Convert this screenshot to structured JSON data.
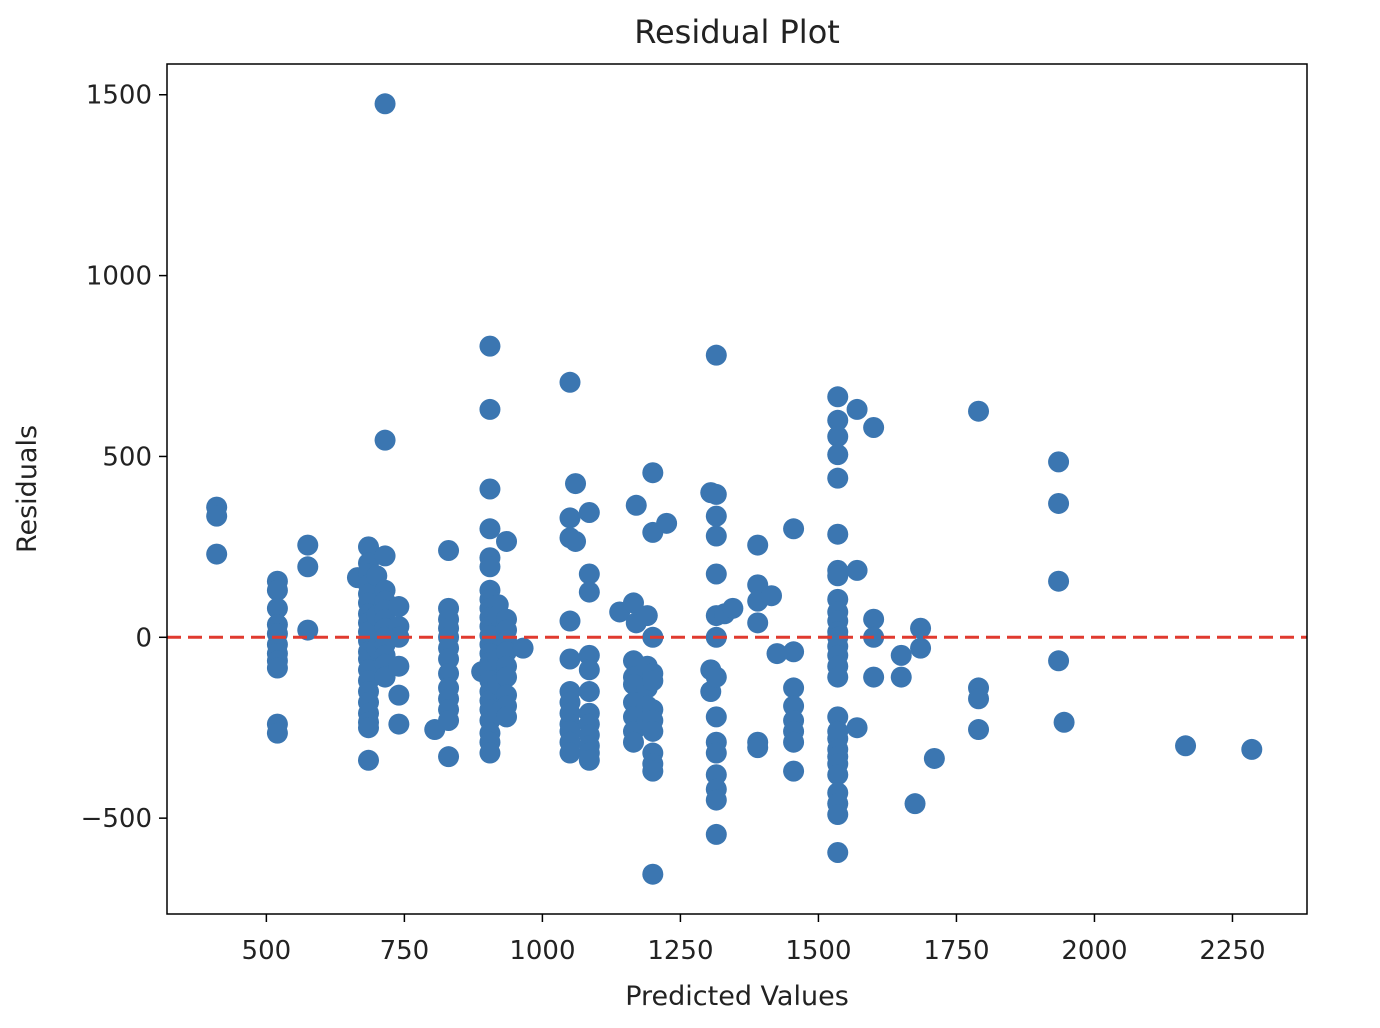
{
  "chart_data": {
    "type": "scatter",
    "title": "Residual Plot",
    "xlabel": "Predicted Values",
    "ylabel": "Residuals",
    "xlim": [
      320,
      2385
    ],
    "ylim": [
      -765,
      1585
    ],
    "xticks": [
      500,
      750,
      1000,
      1250,
      1500,
      1750,
      2000,
      2250
    ],
    "yticks": [
      -500,
      0,
      500,
      1000,
      1500
    ],
    "xtick_labels": [
      "500",
      "750",
      "1000",
      "1250",
      "1500",
      "1750",
      "2000",
      "2250"
    ],
    "ytick_labels": [
      "−500",
      "0",
      "500",
      "1000",
      "1500"
    ],
    "grid": false,
    "legend": "none",
    "point_color": "#3b76b1",
    "reference_line": {
      "y": 0,
      "style": "dashed",
      "color": "#e03a2f"
    },
    "points": [
      [
        410,
        360
      ],
      [
        410,
        335
      ],
      [
        410,
        230
      ],
      [
        520,
        155
      ],
      [
        520,
        130
      ],
      [
        520,
        80
      ],
      [
        520,
        35
      ],
      [
        520,
        10
      ],
      [
        520,
        -20
      ],
      [
        520,
        -45
      ],
      [
        520,
        -65
      ],
      [
        520,
        -85
      ],
      [
        520,
        -240
      ],
      [
        520,
        -265
      ],
      [
        575,
        255
      ],
      [
        575,
        195
      ],
      [
        575,
        20
      ],
      [
        665,
        165
      ],
      [
        685,
        250
      ],
      [
        685,
        205
      ],
      [
        685,
        175
      ],
      [
        685,
        145
      ],
      [
        685,
        120
      ],
      [
        685,
        95
      ],
      [
        685,
        65
      ],
      [
        685,
        40
      ],
      [
        685,
        15
      ],
      [
        685,
        -10
      ],
      [
        685,
        -40
      ],
      [
        685,
        -60
      ],
      [
        685,
        -90
      ],
      [
        685,
        -120
      ],
      [
        685,
        -150
      ],
      [
        685,
        -180
      ],
      [
        685,
        -210
      ],
      [
        685,
        -235
      ],
      [
        685,
        -250
      ],
      [
        685,
        -340
      ],
      [
        700,
        170
      ],
      [
        700,
        60
      ],
      [
        700,
        -30
      ],
      [
        715,
        1475
      ],
      [
        715,
        545
      ],
      [
        715,
        225
      ],
      [
        715,
        130
      ],
      [
        715,
        100
      ],
      [
        715,
        75
      ],
      [
        715,
        50
      ],
      [
        715,
        25
      ],
      [
        715,
        0
      ],
      [
        715,
        -20
      ],
      [
        715,
        -50
      ],
      [
        715,
        -75
      ],
      [
        715,
        -110
      ],
      [
        740,
        85
      ],
      [
        740,
        30
      ],
      [
        740,
        0
      ],
      [
        740,
        -80
      ],
      [
        740,
        -160
      ],
      [
        740,
        -240
      ],
      [
        805,
        -255
      ],
      [
        830,
        240
      ],
      [
        830,
        80
      ],
      [
        830,
        50
      ],
      [
        830,
        25
      ],
      [
        830,
        0
      ],
      [
        830,
        -30
      ],
      [
        830,
        -60
      ],
      [
        830,
        -100
      ],
      [
        830,
        -140
      ],
      [
        830,
        -170
      ],
      [
        830,
        -200
      ],
      [
        830,
        -230
      ],
      [
        830,
        -330
      ],
      [
        890,
        -95
      ],
      [
        905,
        805
      ],
      [
        905,
        630
      ],
      [
        905,
        410
      ],
      [
        905,
        300
      ],
      [
        905,
        220
      ],
      [
        905,
        195
      ],
      [
        905,
        130
      ],
      [
        905,
        105
      ],
      [
        905,
        80
      ],
      [
        905,
        55
      ],
      [
        905,
        30
      ],
      [
        905,
        5
      ],
      [
        905,
        -20
      ],
      [
        905,
        -45
      ],
      [
        905,
        -70
      ],
      [
        905,
        -95
      ],
      [
        905,
        -120
      ],
      [
        905,
        -150
      ],
      [
        905,
        -175
      ],
      [
        905,
        -200
      ],
      [
        905,
        -230
      ],
      [
        905,
        -265
      ],
      [
        905,
        -290
      ],
      [
        905,
        -320
      ],
      [
        920,
        90
      ],
      [
        920,
        60
      ],
      [
        920,
        -60
      ],
      [
        920,
        -130
      ],
      [
        920,
        -210
      ],
      [
        935,
        265
      ],
      [
        935,
        50
      ],
      [
        935,
        20
      ],
      [
        935,
        -10
      ],
      [
        935,
        -40
      ],
      [
        935,
        -80
      ],
      [
        935,
        -110
      ],
      [
        935,
        -160
      ],
      [
        935,
        -190
      ],
      [
        935,
        -220
      ],
      [
        965,
        -30
      ],
      [
        1050,
        705
      ],
      [
        1050,
        330
      ],
      [
        1050,
        275
      ],
      [
        1050,
        45
      ],
      [
        1050,
        -60
      ],
      [
        1050,
        -150
      ],
      [
        1050,
        -180
      ],
      [
        1050,
        -210
      ],
      [
        1050,
        -240
      ],
      [
        1050,
        -260
      ],
      [
        1050,
        -290
      ],
      [
        1050,
        -320
      ],
      [
        1060,
        425
      ],
      [
        1060,
        265
      ],
      [
        1085,
        345
      ],
      [
        1085,
        175
      ],
      [
        1085,
        125
      ],
      [
        1085,
        -50
      ],
      [
        1085,
        -90
      ],
      [
        1085,
        -150
      ],
      [
        1085,
        -210
      ],
      [
        1085,
        -240
      ],
      [
        1085,
        -270
      ],
      [
        1085,
        -300
      ],
      [
        1085,
        -320
      ],
      [
        1085,
        -340
      ],
      [
        1140,
        70
      ],
      [
        1165,
        95
      ],
      [
        1165,
        -65
      ],
      [
        1165,
        -110
      ],
      [
        1165,
        -130
      ],
      [
        1165,
        -180
      ],
      [
        1165,
        -220
      ],
      [
        1165,
        -260
      ],
      [
        1165,
        -290
      ],
      [
        1170,
        365
      ],
      [
        1170,
        40
      ],
      [
        1190,
        60
      ],
      [
        1190,
        -80
      ],
      [
        1190,
        -140
      ],
      [
        1190,
        -190
      ],
      [
        1190,
        -230
      ],
      [
        1200,
        455
      ],
      [
        1200,
        290
      ],
      [
        1200,
        0
      ],
      [
        1200,
        -100
      ],
      [
        1200,
        -120
      ],
      [
        1200,
        -200
      ],
      [
        1200,
        -230
      ],
      [
        1200,
        -260
      ],
      [
        1200,
        -320
      ],
      [
        1200,
        -350
      ],
      [
        1200,
        -370
      ],
      [
        1200,
        -655
      ],
      [
        1225,
        315
      ],
      [
        1305,
        400
      ],
      [
        1305,
        -90
      ],
      [
        1305,
        -150
      ],
      [
        1315,
        780
      ],
      [
        1315,
        395
      ],
      [
        1315,
        335
      ],
      [
        1315,
        280
      ],
      [
        1315,
        175
      ],
      [
        1315,
        60
      ],
      [
        1315,
        0
      ],
      [
        1315,
        -110
      ],
      [
        1315,
        -220
      ],
      [
        1315,
        -290
      ],
      [
        1315,
        -320
      ],
      [
        1315,
        -380
      ],
      [
        1315,
        -420
      ],
      [
        1315,
        -450
      ],
      [
        1315,
        -545
      ],
      [
        1330,
        65
      ],
      [
        1345,
        80
      ],
      [
        1390,
        255
      ],
      [
        1390,
        145
      ],
      [
        1390,
        100
      ],
      [
        1390,
        40
      ],
      [
        1390,
        -290
      ],
      [
        1390,
        -305
      ],
      [
        1415,
        115
      ],
      [
        1425,
        -45
      ],
      [
        1455,
        300
      ],
      [
        1455,
        -40
      ],
      [
        1455,
        -140
      ],
      [
        1455,
        -190
      ],
      [
        1455,
        -230
      ],
      [
        1455,
        -260
      ],
      [
        1455,
        -290
      ],
      [
        1455,
        -370
      ],
      [
        1535,
        665
      ],
      [
        1535,
        600
      ],
      [
        1535,
        555
      ],
      [
        1535,
        505
      ],
      [
        1535,
        440
      ],
      [
        1535,
        285
      ],
      [
        1535,
        185
      ],
      [
        1535,
        170
      ],
      [
        1535,
        105
      ],
      [
        1535,
        70
      ],
      [
        1535,
        45
      ],
      [
        1535,
        15
      ],
      [
        1535,
        0
      ],
      [
        1535,
        -25
      ],
      [
        1535,
        -50
      ],
      [
        1535,
        -80
      ],
      [
        1535,
        -110
      ],
      [
        1535,
        -220
      ],
      [
        1535,
        -260
      ],
      [
        1535,
        -280
      ],
      [
        1535,
        -310
      ],
      [
        1535,
        -330
      ],
      [
        1535,
        -350
      ],
      [
        1535,
        -380
      ],
      [
        1535,
        -430
      ],
      [
        1535,
        -460
      ],
      [
        1535,
        -490
      ],
      [
        1535,
        -595
      ],
      [
        1570,
        630
      ],
      [
        1570,
        185
      ],
      [
        1570,
        -250
      ],
      [
        1600,
        580
      ],
      [
        1600,
        50
      ],
      [
        1600,
        0
      ],
      [
        1600,
        -110
      ],
      [
        1650,
        -50
      ],
      [
        1650,
        -110
      ],
      [
        1675,
        -460
      ],
      [
        1685,
        25
      ],
      [
        1685,
        -30
      ],
      [
        1710,
        -335
      ],
      [
        1790,
        625
      ],
      [
        1790,
        -140
      ],
      [
        1790,
        -170
      ],
      [
        1790,
        -255
      ],
      [
        1935,
        485
      ],
      [
        1935,
        370
      ],
      [
        1935,
        155
      ],
      [
        1935,
        -65
      ],
      [
        1945,
        -235
      ],
      [
        2165,
        -300
      ],
      [
        2285,
        -310
      ]
    ]
  }
}
